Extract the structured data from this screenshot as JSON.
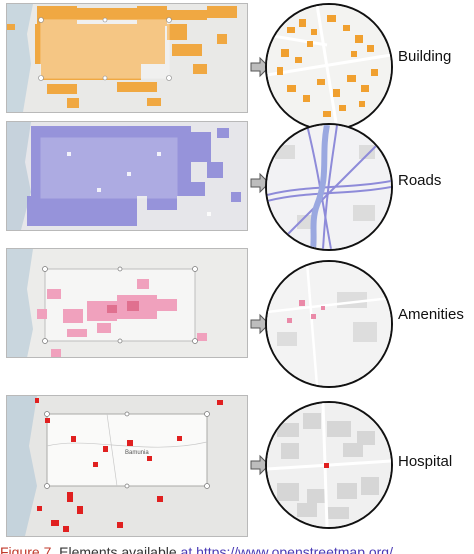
{
  "layers": [
    {
      "label": "Building",
      "color": "#f0a030"
    },
    {
      "label": "Roads",
      "color": "#8a86d6"
    },
    {
      "label": "Amenities",
      "color": "#ea8aa8"
    },
    {
      "label": "Hospital",
      "color": "#e02020"
    }
  ],
  "map_labels": {
    "hospital_city": "Bamunia"
  },
  "caption": {
    "fig": "Figure 7.",
    "text": " Elements available ",
    "link": "at https://www.openstreetmap.org/"
  }
}
